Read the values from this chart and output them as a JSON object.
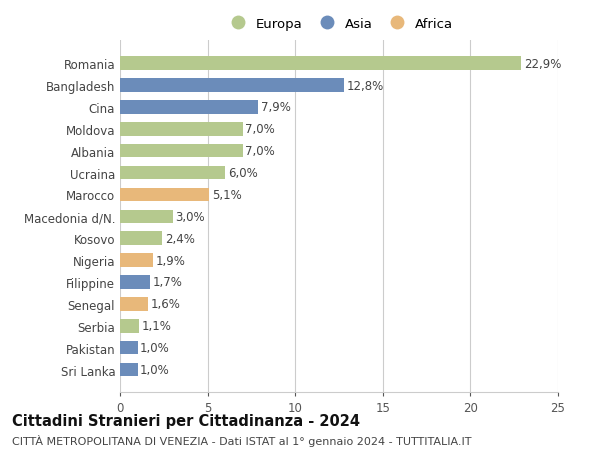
{
  "categories": [
    "Sri Lanka",
    "Pakistan",
    "Serbia",
    "Senegal",
    "Filippine",
    "Nigeria",
    "Kosovo",
    "Macedonia d/N.",
    "Marocco",
    "Ucraina",
    "Albania",
    "Moldova",
    "Cina",
    "Bangladesh",
    "Romania"
  ],
  "values": [
    1.0,
    1.0,
    1.1,
    1.6,
    1.7,
    1.9,
    2.4,
    3.0,
    5.1,
    6.0,
    7.0,
    7.0,
    7.9,
    12.8,
    22.9
  ],
  "labels": [
    "1,0%",
    "1,0%",
    "1,1%",
    "1,6%",
    "1,7%",
    "1,9%",
    "2,4%",
    "3,0%",
    "5,1%",
    "6,0%",
    "7,0%",
    "7,0%",
    "7,9%",
    "12,8%",
    "22,9%"
  ],
  "continent": [
    "Asia",
    "Asia",
    "Europa",
    "Africa",
    "Asia",
    "Africa",
    "Europa",
    "Europa",
    "Africa",
    "Europa",
    "Europa",
    "Europa",
    "Asia",
    "Asia",
    "Europa"
  ],
  "colors": {
    "Europa": "#b5c98e",
    "Asia": "#6b8cba",
    "Africa": "#e8b87a"
  },
  "xlim": [
    0,
    25
  ],
  "xticks": [
    0,
    5,
    10,
    15,
    20,
    25
  ],
  "title": "Cittadini Stranieri per Cittadinanza - 2024",
  "subtitle": "CITTÀ METROPOLITANA DI VENEZIA - Dati ISTAT al 1° gennaio 2024 - TUTTITALIA.IT",
  "background_color": "#ffffff",
  "grid_color": "#cccccc",
  "bar_height": 0.62,
  "title_fontsize": 10.5,
  "subtitle_fontsize": 8,
  "tick_fontsize": 8.5,
  "label_fontsize": 8.5,
  "legend_fontsize": 9.5
}
